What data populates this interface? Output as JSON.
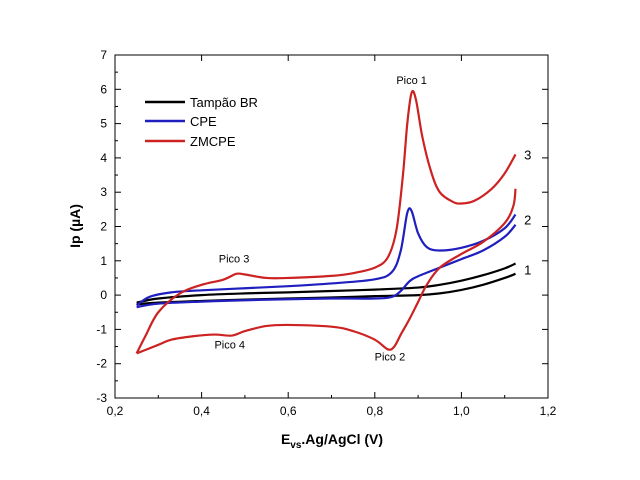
{
  "chart_data": {
    "type": "line",
    "xlabel": {
      "main": "E",
      "sub": "vs",
      "rest": ".Ag/AgCl (V)"
    },
    "ylabel": "Ip (µA)",
    "xlim": [
      0.2,
      1.2
    ],
    "ylim": [
      -3,
      7
    ],
    "x_ticks": [
      "0,2",
      "0,4",
      "0,6",
      "0,8",
      "1,0",
      "1,2"
    ],
    "y_ticks": [
      "-3",
      "-2",
      "-1",
      "0",
      "1",
      "2",
      "3",
      "4",
      "5",
      "6",
      "7"
    ],
    "grid": false,
    "legend_position": "top-left",
    "series": [
      {
        "name": "Tampão BR",
        "color": "#000000",
        "forward": [
          [
            0.25,
            -0.22
          ],
          [
            0.3,
            -0.1
          ],
          [
            0.4,
            0.0
          ],
          [
            0.5,
            0.05
          ],
          [
            0.6,
            0.08
          ],
          [
            0.7,
            0.12
          ],
          [
            0.8,
            0.16
          ],
          [
            0.9,
            0.22
          ],
          [
            0.95,
            0.3
          ],
          [
            1.0,
            0.42
          ],
          [
            1.05,
            0.58
          ],
          [
            1.1,
            0.78
          ],
          [
            1.125,
            0.92
          ]
        ],
        "reverse": [
          [
            1.125,
            0.62
          ],
          [
            1.1,
            0.5
          ],
          [
            1.05,
            0.3
          ],
          [
            1.0,
            0.15
          ],
          [
            0.95,
            0.05
          ],
          [
            0.9,
            0.0
          ],
          [
            0.8,
            -0.03
          ],
          [
            0.7,
            -0.07
          ],
          [
            0.6,
            -0.1
          ],
          [
            0.5,
            -0.13
          ],
          [
            0.4,
            -0.17
          ],
          [
            0.3,
            -0.22
          ],
          [
            0.25,
            -0.27
          ]
        ]
      },
      {
        "name": "CPE",
        "color": "#1f1fbf",
        "forward": [
          [
            0.25,
            -0.3
          ],
          [
            0.28,
            -0.05
          ],
          [
            0.33,
            0.08
          ],
          [
            0.4,
            0.14
          ],
          [
            0.5,
            0.2
          ],
          [
            0.6,
            0.26
          ],
          [
            0.7,
            0.34
          ],
          [
            0.8,
            0.46
          ],
          [
            0.84,
            0.68
          ],
          [
            0.86,
            1.3
          ],
          [
            0.875,
            2.4
          ],
          [
            0.885,
            2.45
          ],
          [
            0.9,
            1.8
          ],
          [
            0.92,
            1.4
          ],
          [
            0.95,
            1.3
          ],
          [
            1.0,
            1.38
          ],
          [
            1.05,
            1.58
          ],
          [
            1.1,
            1.95
          ],
          [
            1.125,
            2.35
          ]
        ],
        "reverse": [
          [
            1.125,
            2.05
          ],
          [
            1.1,
            1.7
          ],
          [
            1.05,
            1.3
          ],
          [
            1.0,
            1.05
          ],
          [
            0.95,
            0.8
          ],
          [
            0.9,
            0.55
          ],
          [
            0.88,
            0.4
          ],
          [
            0.86,
            0.12
          ],
          [
            0.84,
            -0.05
          ],
          [
            0.8,
            -0.1
          ],
          [
            0.7,
            -0.1
          ],
          [
            0.6,
            -0.12
          ],
          [
            0.5,
            -0.15
          ],
          [
            0.4,
            -0.19
          ],
          [
            0.3,
            -0.25
          ],
          [
            0.25,
            -0.35
          ]
        ]
      },
      {
        "name": "ZMCPE",
        "color": "#cc2222",
        "forward": [
          [
            0.25,
            -1.7
          ],
          [
            0.27,
            -1.2
          ],
          [
            0.3,
            -0.5
          ],
          [
            0.35,
            0.05
          ],
          [
            0.4,
            0.3
          ],
          [
            0.45,
            0.45
          ],
          [
            0.48,
            0.62
          ],
          [
            0.5,
            0.6
          ],
          [
            0.55,
            0.5
          ],
          [
            0.6,
            0.5
          ],
          [
            0.7,
            0.56
          ],
          [
            0.75,
            0.64
          ],
          [
            0.8,
            0.8
          ],
          [
            0.83,
            1.1
          ],
          [
            0.85,
            1.9
          ],
          [
            0.865,
            3.5
          ],
          [
            0.875,
            5.0
          ],
          [
            0.885,
            5.9
          ],
          [
            0.895,
            5.7
          ],
          [
            0.91,
            4.6
          ],
          [
            0.93,
            3.6
          ],
          [
            0.95,
            3.0
          ],
          [
            0.98,
            2.72
          ],
          [
            1.0,
            2.67
          ],
          [
            1.03,
            2.75
          ],
          [
            1.07,
            3.1
          ],
          [
            1.1,
            3.55
          ],
          [
            1.125,
            4.1
          ]
        ],
        "reverse": [
          [
            1.125,
            3.1
          ],
          [
            1.12,
            2.6
          ],
          [
            1.1,
            2.1
          ],
          [
            1.05,
            1.55
          ],
          [
            1.0,
            1.2
          ],
          [
            0.95,
            0.8
          ],
          [
            0.92,
            0.3
          ],
          [
            0.9,
            -0.2
          ],
          [
            0.88,
            -0.7
          ],
          [
            0.86,
            -1.15
          ],
          [
            0.845,
            -1.5
          ],
          [
            0.83,
            -1.58
          ],
          [
            0.8,
            -1.3
          ],
          [
            0.75,
            -1.05
          ],
          [
            0.7,
            -0.92
          ],
          [
            0.6,
            -0.87
          ],
          [
            0.55,
            -0.9
          ],
          [
            0.5,
            -1.05
          ],
          [
            0.47,
            -1.18
          ],
          [
            0.43,
            -1.15
          ],
          [
            0.38,
            -1.2
          ],
          [
            0.33,
            -1.3
          ],
          [
            0.3,
            -1.45
          ],
          [
            0.25,
            -1.7
          ]
        ]
      }
    ],
    "annotations": [
      {
        "text": "Pico 1",
        "x": 0.885,
        "y": 6.15
      },
      {
        "text": "Pico 2",
        "x": 0.835,
        "y": -1.9
      },
      {
        "text": "Pico 3",
        "x": 0.475,
        "y": 0.95
      },
      {
        "text": "Pico 4",
        "x": 0.465,
        "y": -1.55
      }
    ],
    "curve_labels": [
      {
        "text": "1",
        "x": 1.145,
        "y": 0.75
      },
      {
        "text": "2",
        "x": 1.145,
        "y": 2.2
      },
      {
        "text": "3",
        "x": 1.145,
        "y": 4.1
      }
    ]
  }
}
